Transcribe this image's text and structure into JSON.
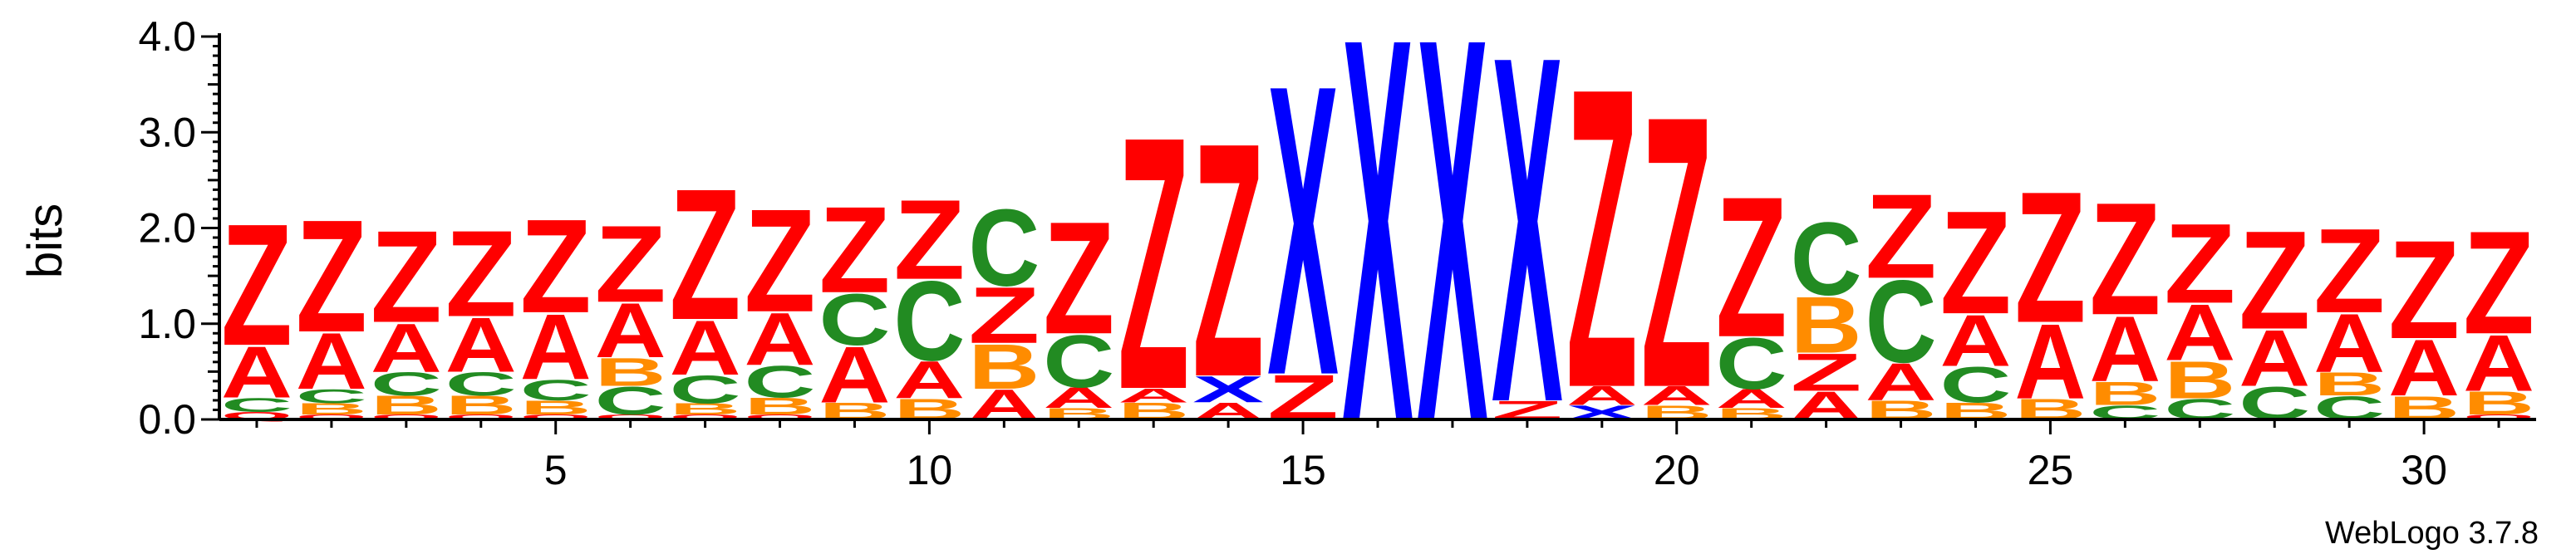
{
  "chart_data": {
    "type": "sequence-logo",
    "ylabel": "bits",
    "ylim": [
      0,
      4.0
    ],
    "y_ticks": [
      "0.0",
      "1.0",
      "2.0",
      "3.0",
      "4.0"
    ],
    "x_ticks": [
      "5",
      "10",
      "15",
      "20",
      "25",
      "30"
    ],
    "x_tick_values": [
      5,
      10,
      15,
      20,
      25,
      30
    ],
    "positions": 31,
    "credit": "WebLogo 3.7.8",
    "colors": {
      "Z": "#ff0000",
      "A": "#ff0000",
      "X": "#0000ff",
      "C": "#228b22",
      "B": "#ff8c00",
      "Q": "#ff0000"
    },
    "columns": [
      [
        [
          "Q",
          0.08
        ],
        [
          "C",
          0.15
        ],
        [
          "A",
          0.55
        ],
        [
          "Z",
          1.3
        ]
      ],
      [
        [
          "Q",
          0.05
        ],
        [
          "B",
          0.12
        ],
        [
          "C",
          0.15
        ],
        [
          "A",
          0.6
        ],
        [
          "Z",
          1.2
        ]
      ],
      [
        [
          "Q",
          0.05
        ],
        [
          "B",
          0.2
        ],
        [
          "C",
          0.25
        ],
        [
          "A",
          0.52
        ],
        [
          "Z",
          0.98
        ]
      ],
      [
        [
          "Q",
          0.05
        ],
        [
          "B",
          0.2
        ],
        [
          "C",
          0.25
        ],
        [
          "A",
          0.58
        ],
        [
          "Z",
          0.92
        ]
      ],
      [
        [
          "Q",
          0.05
        ],
        [
          "B",
          0.15
        ],
        [
          "C",
          0.22
        ],
        [
          "A",
          0.7
        ],
        [
          "Z",
          1.0
        ]
      ],
      [
        [
          "Q",
          0.05
        ],
        [
          "C",
          0.3
        ],
        [
          "B",
          0.3
        ],
        [
          "A",
          0.58
        ],
        [
          "Z",
          0.82
        ]
      ],
      [
        [
          "Q",
          0.05
        ],
        [
          "B",
          0.12
        ],
        [
          "C",
          0.3
        ],
        [
          "A",
          0.58
        ],
        [
          "Z",
          1.4
        ]
      ],
      [
        [
          "Q",
          0.05
        ],
        [
          "B",
          0.18
        ],
        [
          "C",
          0.34
        ],
        [
          "A",
          0.56
        ],
        [
          "Z",
          1.1
        ]
      ],
      [
        [
          "B",
          0.18
        ],
        [
          "A",
          0.6
        ],
        [
          "C",
          0.55
        ],
        [
          "Z",
          0.92
        ]
      ],
      [
        [
          "B",
          0.22
        ],
        [
          "A",
          0.4
        ],
        [
          "C",
          0.85
        ],
        [
          "Z",
          0.85
        ]
      ],
      [
        [
          "A",
          0.32
        ],
        [
          "B",
          0.48
        ],
        [
          "Z",
          0.6
        ],
        [
          "C",
          0.82
        ]
      ],
      [
        [
          "B",
          0.12
        ],
        [
          "A",
          0.22
        ],
        [
          "C",
          0.56
        ],
        [
          "Z",
          1.2
        ]
      ],
      [
        [
          "B",
          0.18
        ],
        [
          "A",
          0.15
        ],
        [
          "Z",
          2.7
        ]
      ],
      [
        [
          "A",
          0.18
        ],
        [
          "X",
          0.28
        ],
        [
          "Z",
          2.5
        ]
      ],
      [
        [
          "Z",
          0.48
        ],
        [
          "X",
          3.1
        ]
      ],
      [
        [
          "X",
          4.1
        ]
      ],
      [
        [
          "X",
          4.1
        ]
      ],
      [
        [
          "Z",
          0.2
        ],
        [
          "X",
          3.7
        ]
      ],
      [
        [
          "X",
          0.15
        ],
        [
          "A",
          0.2
        ],
        [
          "Z",
          3.2
        ]
      ],
      [
        [
          "B",
          0.15
        ],
        [
          "A",
          0.2
        ],
        [
          "Z",
          2.9
        ]
      ],
      [
        [
          "B",
          0.12
        ],
        [
          "A",
          0.2
        ],
        [
          "C",
          0.55
        ],
        [
          "Z",
          1.5
        ]
      ],
      [
        [
          "A",
          0.3
        ],
        [
          "Z",
          0.4
        ],
        [
          "B",
          0.6
        ],
        [
          "C",
          0.78
        ]
      ],
      [
        [
          "B",
          0.2
        ],
        [
          "A",
          0.4
        ],
        [
          "C",
          0.88
        ],
        [
          "Z",
          0.9
        ]
      ],
      [
        [
          "B",
          0.18
        ],
        [
          "C",
          0.38
        ],
        [
          "A",
          0.55
        ],
        [
          "Z",
          1.1
        ]
      ],
      [
        [
          "B",
          0.22
        ],
        [
          "A",
          0.8
        ],
        [
          "Z",
          1.4
        ]
      ],
      [
        [
          "C",
          0.15
        ],
        [
          "B",
          0.25
        ],
        [
          "A",
          0.7
        ],
        [
          "Z",
          1.2
        ]
      ],
      [
        [
          "C",
          0.22
        ],
        [
          "B",
          0.4
        ],
        [
          "A",
          0.6
        ],
        [
          "Z",
          0.85
        ]
      ],
      [
        [
          "C",
          0.35
        ],
        [
          "A",
          0.6
        ],
        [
          "Z",
          1.05
        ]
      ],
      [
        [
          "C",
          0.25
        ],
        [
          "B",
          0.25
        ],
        [
          "A",
          0.62
        ],
        [
          "Z",
          0.9
        ]
      ],
      [
        [
          "B",
          0.25
        ],
        [
          "A",
          0.6
        ],
        [
          "Z",
          1.05
        ]
      ],
      [
        [
          "Q",
          0.05
        ],
        [
          "B",
          0.25
        ],
        [
          "A",
          0.6
        ],
        [
          "Z",
          1.1
        ]
      ]
    ]
  }
}
